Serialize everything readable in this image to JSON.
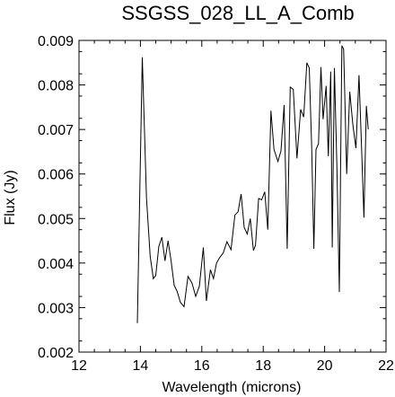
{
  "chart_data": {
    "type": "line",
    "title": "SSGSS_028_LL_A_Comb",
    "xlabel": "Wavelength (microns)",
    "ylabel": "Flux (Jy)",
    "xlim": [
      12,
      22
    ],
    "ylim": [
      0.002,
      0.009
    ],
    "xticks": [
      12,
      14,
      16,
      18,
      20,
      22
    ],
    "xtick_labels": [
      "12",
      "14",
      "16",
      "18",
      "20",
      "22"
    ],
    "yticks": [
      0.002,
      0.003,
      0.004,
      0.005,
      0.006,
      0.007,
      0.008,
      0.009
    ],
    "ytick_labels": [
      "0.002",
      "0.003",
      "0.004",
      "0.005",
      "0.006",
      "0.007",
      "0.008",
      "0.009"
    ],
    "grid": false,
    "colors": {
      "line": "#000000",
      "axes": "#000000",
      "background": "#ffffff"
    },
    "series": [
      {
        "x": [
          13.9,
          14.06,
          14.2,
          14.32,
          14.42,
          14.5,
          14.6,
          14.7,
          14.8,
          14.9,
          15.0,
          15.1,
          15.2,
          15.3,
          15.42,
          15.55,
          15.68,
          15.8,
          15.92,
          16.05,
          16.15,
          16.28,
          16.38,
          16.48,
          16.58,
          16.7,
          16.82,
          16.95,
          17.08,
          17.18,
          17.28,
          17.38,
          17.48,
          17.58,
          17.68,
          17.75,
          17.85,
          17.95,
          18.05,
          18.15,
          18.25,
          18.35,
          18.48,
          18.58,
          18.68,
          18.78,
          18.88,
          18.98,
          19.1,
          19.22,
          19.32,
          19.42,
          19.5,
          19.58,
          19.65,
          19.72,
          19.8,
          19.88,
          19.95,
          20.05,
          20.12,
          20.2,
          20.25,
          20.32,
          20.4,
          20.48,
          20.56,
          20.62,
          20.72,
          20.82,
          20.92,
          21.02,
          21.12,
          21.2,
          21.28,
          21.36,
          21.42
        ],
        "y": [
          0.00265,
          0.00862,
          0.00545,
          0.00415,
          0.00365,
          0.00372,
          0.00437,
          0.00458,
          0.00405,
          0.0045,
          0.00405,
          0.0035,
          0.00336,
          0.00312,
          0.00302,
          0.0037,
          0.00355,
          0.00325,
          0.00348,
          0.00435,
          0.00315,
          0.00385,
          0.00365,
          0.004,
          0.00412,
          0.00423,
          0.00448,
          0.0043,
          0.00508,
          0.00515,
          0.00555,
          0.0048,
          0.00465,
          0.005,
          0.00428,
          0.0044,
          0.00545,
          0.00542,
          0.0056,
          0.00475,
          0.00742,
          0.00655,
          0.00628,
          0.00652,
          0.00755,
          0.00432,
          0.00795,
          0.0079,
          0.00635,
          0.00745,
          0.00728,
          0.0085,
          0.00838,
          0.0066,
          0.00432,
          0.00655,
          0.00668,
          0.0084,
          0.00723,
          0.00798,
          0.0064,
          0.0083,
          0.00435,
          0.00838,
          0.00615,
          0.00335,
          0.00888,
          0.0088,
          0.006,
          0.00785,
          0.0071,
          0.00658,
          0.00822,
          0.00668,
          0.00502,
          0.00753,
          0.007
        ]
      }
    ]
  }
}
